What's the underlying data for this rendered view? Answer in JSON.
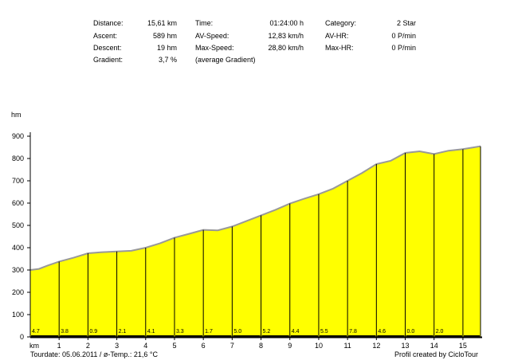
{
  "summary": {
    "distance": {
      "label": "Distance:",
      "value": "15,61 km"
    },
    "ascent": {
      "label": "Ascent:",
      "value": "589 hm"
    },
    "descent": {
      "label": "Descent:",
      "value": "19 hm"
    },
    "gradient": {
      "label": "Gradient:",
      "value": "3,7 %"
    },
    "time": {
      "label": "Time:",
      "value": "01:24:00 h"
    },
    "av_speed": {
      "label": "AV-Speed:",
      "value": "12,83 km/h"
    },
    "max_speed": {
      "label": "Max-Speed:",
      "value": "28,80 km/h"
    },
    "avg_gradient_note": "(average Gradient)",
    "category": {
      "label": "Category:",
      "value": "2 Star"
    },
    "av_hr": {
      "label": "AV-HR:",
      "value": "0 P/min"
    },
    "max_hr": {
      "label": "Max-HR:",
      "value": "0 P/min"
    }
  },
  "footer": {
    "tourdate": "Tourdate: 05.06.2011  /  ø-Temp.: 21,6 °C",
    "credit": "Profil created by CicloTour"
  },
  "chart_data": {
    "type": "area",
    "ylabel": "hm",
    "xlabel": "km",
    "xlim": [
      0,
      15.61
    ],
    "ylim": [
      0,
      900
    ],
    "yticks": [
      0,
      100,
      200,
      300,
      400,
      500,
      600,
      700,
      800,
      900
    ],
    "xticks": [
      1,
      2,
      3,
      4,
      5,
      6,
      7,
      8,
      9,
      10,
      11,
      12,
      13,
      14,
      15
    ],
    "grid": false,
    "fill_color": "#ffff00",
    "stroke_color": "#999999",
    "profile": {
      "x": [
        0,
        0.3,
        0.6,
        1,
        1.5,
        2,
        2.5,
        3,
        3.5,
        4,
        4.5,
        5,
        5.5,
        6,
        6.5,
        7,
        7.5,
        8,
        8.5,
        9,
        9.5,
        10,
        10.5,
        11,
        11.5,
        12,
        12.5,
        13,
        13.5,
        14,
        14.5,
        15,
        15.61
      ],
      "y": [
        300,
        305,
        320,
        338,
        355,
        375,
        380,
        383,
        386,
        400,
        420,
        445,
        462,
        480,
        478,
        495,
        520,
        545,
        570,
        598,
        620,
        640,
        665,
        700,
        735,
        775,
        790,
        825,
        832,
        820,
        835,
        842,
        855
      ]
    },
    "segment_gradients": [
      "4.7",
      "3.8",
      "0.9",
      "2.1",
      "4.1",
      "3.3",
      "1.7",
      "5.0",
      "5.2",
      "4.4",
      "5.5",
      "7.8",
      "4.6",
      "0.0",
      "2.0",
      ""
    ]
  }
}
